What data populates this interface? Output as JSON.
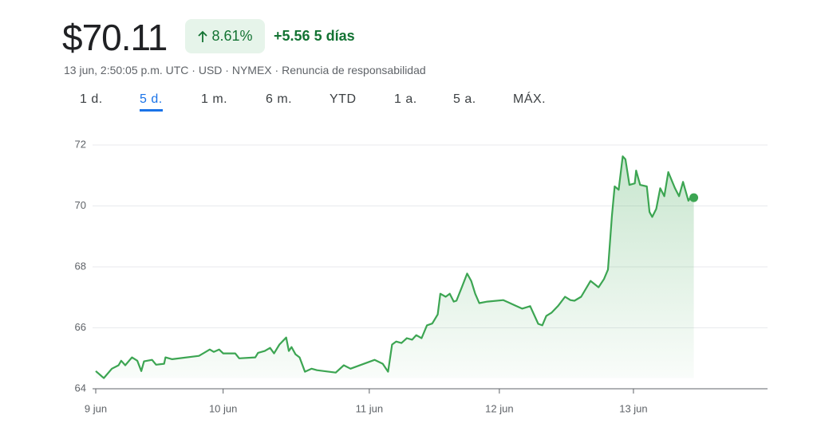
{
  "header": {
    "price": "$70.11",
    "change_pct": "8.61%",
    "change": "+5.56",
    "period": "5 días",
    "meta": "13 jun, 2:50:05 p.m. UTC · USD · NYMEX ·",
    "disclaimer": "Renuncia de responsabilidad"
  },
  "tabs": {
    "items": [
      "1 d.",
      "5 d.",
      "1 m.",
      "6 m.",
      "YTD",
      "1 a.",
      "5 a.",
      "MÁX."
    ],
    "selected": 1
  },
  "chart_data": {
    "type": "line",
    "x": [
      0,
      0.06,
      0.12,
      0.17,
      0.19,
      0.22,
      0.27,
      0.31,
      0.34,
      0.36,
      0.42,
      0.45,
      0.51,
      0.52,
      0.57,
      0.77,
      0.85,
      0.88,
      0.92,
      0.95,
      1.04,
      1.07,
      1.19,
      1.21,
      1.26,
      1.3,
      1.33,
      1.37,
      1.42,
      1.44,
      1.46,
      1.49,
      1.52,
      1.56,
      1.61,
      1.65,
      1.79,
      1.85,
      1.9,
      2.08,
      2.14,
      2.18,
      2.21,
      2.24,
      2.28,
      2.32,
      2.36,
      2.39,
      2.43,
      2.47,
      2.51,
      2.55,
      2.57,
      2.61,
      2.64,
      2.67,
      2.69,
      2.73,
      2.77,
      2.8,
      2.83,
      2.86,
      2.92,
      3.04,
      3.13,
      3.18,
      3.24,
      3.3,
      3.33,
      3.36,
      3.4,
      3.45,
      3.5,
      3.54,
      3.57,
      3.62,
      3.69,
      3.75,
      3.79,
      3.82,
      3.85,
      3.87,
      3.9,
      3.93,
      3.95,
      3.98,
      4.02,
      4.03,
      4.06,
      4.11,
      4.13,
      4.15,
      4.18,
      4.21,
      4.24,
      4.27,
      4.32,
      4.35,
      4.38,
      4.42,
      4.44,
      4.46
    ],
    "series": [
      {
        "color": "#3ca552",
        "values": [
          64.58,
          64.35,
          64.66,
          64.77,
          64.92,
          64.77,
          65.03,
          64.92,
          64.58,
          64.9,
          64.95,
          64.79,
          64.82,
          65.03,
          64.97,
          65.08,
          65.29,
          65.21,
          65.29,
          65.16,
          65.16,
          65.0,
          65.03,
          65.18,
          65.24,
          65.34,
          65.16,
          65.45,
          65.68,
          65.24,
          65.37,
          65.13,
          65.03,
          64.56,
          64.66,
          64.61,
          64.53,
          64.77,
          64.66,
          64.95,
          64.82,
          64.56,
          65.45,
          65.55,
          65.5,
          65.66,
          65.61,
          65.76,
          65.66,
          66.08,
          66.14,
          66.44,
          67.12,
          67.02,
          67.12,
          66.86,
          66.89,
          67.33,
          67.78,
          67.54,
          67.12,
          66.81,
          66.86,
          66.91,
          66.73,
          66.63,
          66.71,
          66.13,
          66.08,
          66.39,
          66.5,
          66.73,
          67.02,
          66.91,
          66.89,
          67.02,
          67.54,
          67.33,
          67.6,
          67.91,
          69.69,
          70.64,
          70.53,
          71.63,
          71.53,
          70.69,
          70.74,
          71.16,
          70.69,
          70.64,
          69.8,
          69.64,
          69.9,
          70.58,
          70.32,
          71.11,
          70.58,
          70.32,
          70.79,
          70.17,
          70.32,
          70.27
        ]
      }
    ],
    "xlim": [
      0,
      5.01
    ],
    "xticks": [
      {
        "value": 0,
        "label": "9 jun"
      },
      {
        "value": 0.95,
        "label": "10 jun"
      },
      {
        "value": 2.04,
        "label": "11 jun"
      },
      {
        "value": 3.01,
        "label": "12 jun"
      },
      {
        "value": 4.01,
        "label": "13 jun"
      }
    ],
    "ylim": [
      64,
      72
    ],
    "yticks": [
      64,
      66,
      68,
      70,
      72
    ],
    "grid": true
  }
}
